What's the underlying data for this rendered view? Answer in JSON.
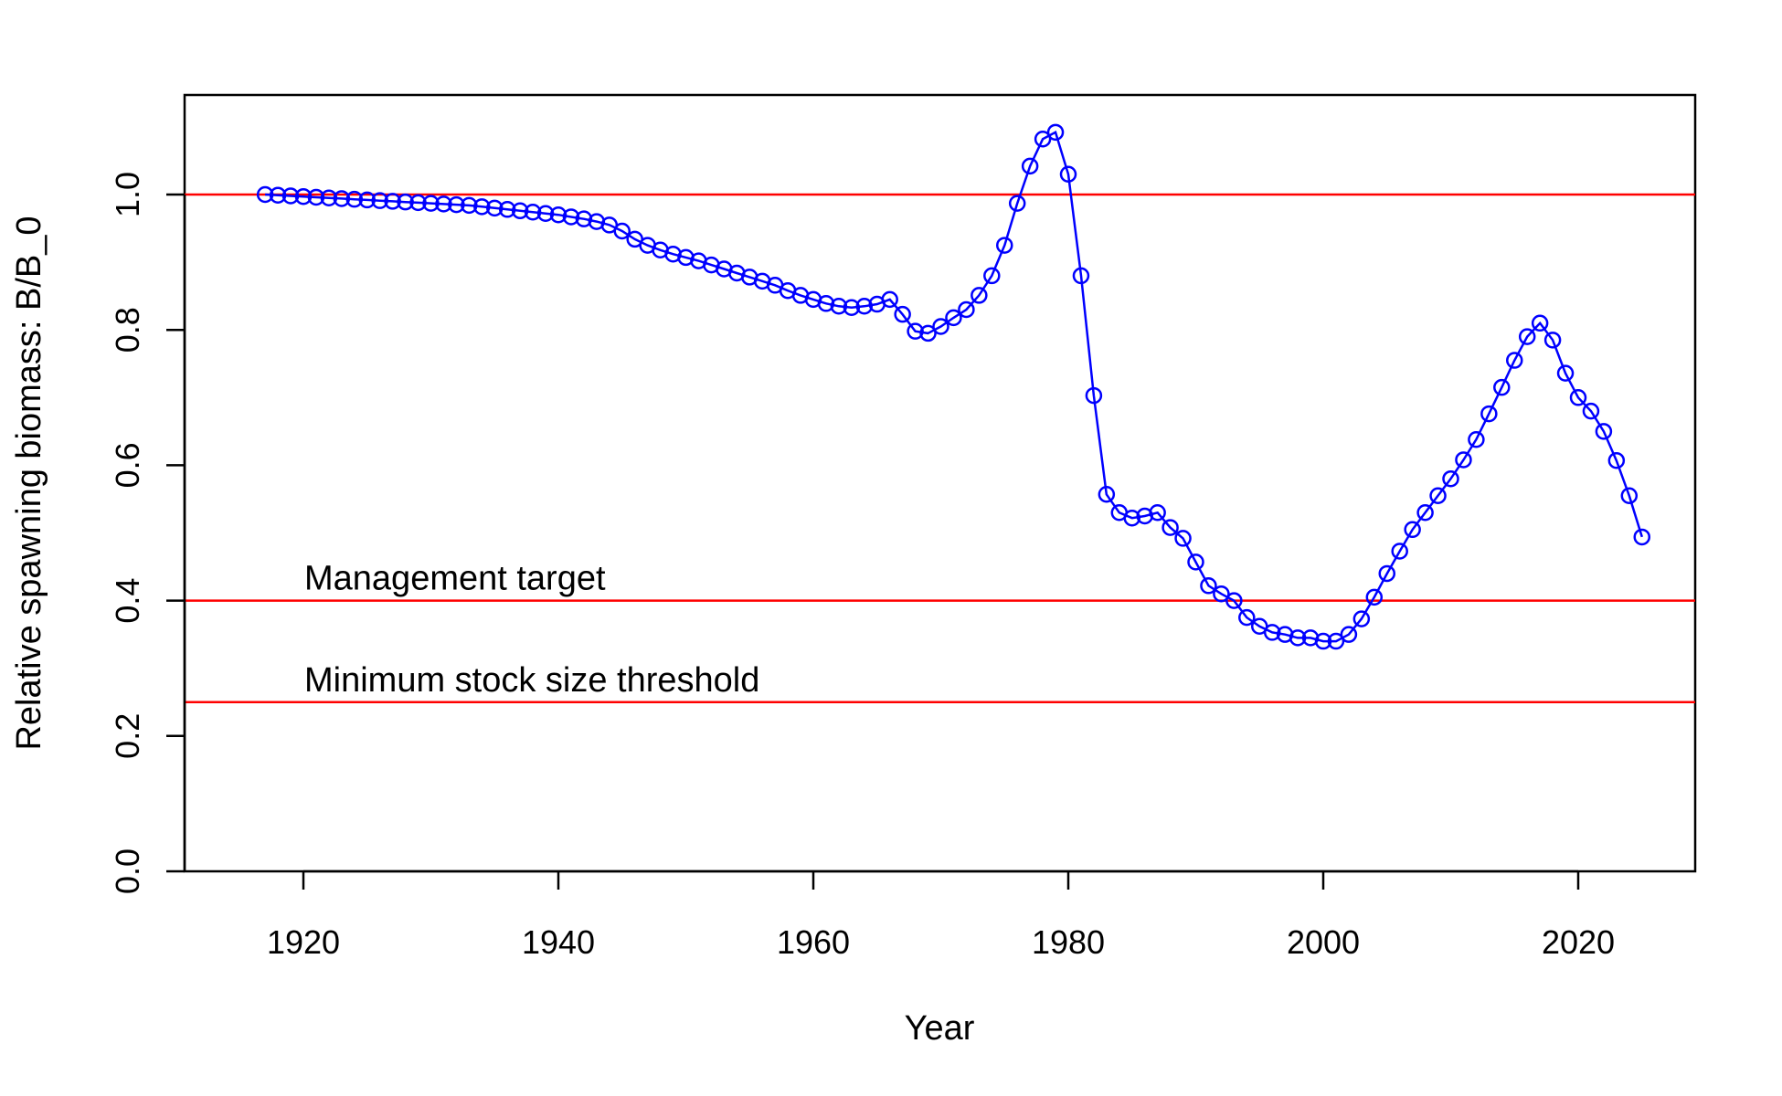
{
  "chart_data": {
    "type": "line",
    "title": "",
    "xlabel": "Year",
    "ylabel": "Relative spawning biomass: B/B_0",
    "xlim": [
      1910,
      2030
    ],
    "ylim": [
      0,
      1.15
    ],
    "xticks": [
      1920,
      1940,
      1960,
      1980,
      2000,
      2020
    ],
    "xtick_labels": [
      "1920",
      "1940",
      "1960",
      "1980",
      "2000",
      "2020"
    ],
    "yticks": [
      0,
      0.2,
      0.4,
      0.6,
      0.8,
      1.0
    ],
    "ytick_labels": [
      "0.0",
      "0.2",
      "0.4",
      "0.6",
      "0.8",
      "1.0"
    ],
    "grid": false,
    "series": [
      {
        "color": "#0000ff",
        "marker": "open-circle",
        "x": [
          1917,
          1918,
          1919,
          1920,
          1921,
          1922,
          1923,
          1924,
          1925,
          1926,
          1927,
          1928,
          1929,
          1930,
          1931,
          1932,
          1933,
          1934,
          1935,
          1936,
          1937,
          1938,
          1939,
          1940,
          1941,
          1942,
          1943,
          1944,
          1945,
          1946,
          1947,
          1948,
          1949,
          1950,
          1951,
          1952,
          1953,
          1954,
          1955,
          1956,
          1957,
          1958,
          1959,
          1960,
          1961,
          1962,
          1963,
          1964,
          1965,
          1966,
          1967,
          1968,
          1969,
          1970,
          1971,
          1972,
          1973,
          1974,
          1975,
          1976,
          1977,
          1978,
          1979,
          1980,
          1981,
          1982,
          1983,
          1984,
          1985,
          1986,
          1987,
          1988,
          1989,
          1990,
          1991,
          1992,
          1993,
          1994,
          1995,
          1996,
          1997,
          1998,
          1999,
          2000,
          2001,
          2002,
          2003,
          2004,
          2005,
          2006,
          2007,
          2008,
          2009,
          2010,
          2011,
          2012,
          2013,
          2014,
          2015,
          2016,
          2017,
          2018,
          2019,
          2020,
          2021,
          2022,
          2023,
          2024,
          2025
        ],
        "y": [
          1.0,
          0.999,
          0.998,
          0.997,
          0.996,
          0.995,
          0.994,
          0.993,
          0.992,
          0.991,
          0.99,
          0.989,
          0.988,
          0.987,
          0.986,
          0.985,
          0.984,
          0.982,
          0.98,
          0.978,
          0.976,
          0.974,
          0.972,
          0.97,
          0.967,
          0.964,
          0.96,
          0.955,
          0.946,
          0.934,
          0.925,
          0.918,
          0.912,
          0.907,
          0.902,
          0.896,
          0.89,
          0.884,
          0.878,
          0.872,
          0.866,
          0.858,
          0.851,
          0.845,
          0.839,
          0.835,
          0.833,
          0.835,
          0.838,
          0.845,
          0.823,
          0.798,
          0.795,
          0.805,
          0.818,
          0.83,
          0.851,
          0.88,
          0.925,
          0.987,
          1.042,
          1.082,
          1.092,
          1.03,
          0.88,
          0.703,
          0.557,
          0.53,
          0.522,
          0.525,
          0.53,
          0.508,
          0.492,
          0.457,
          0.422,
          0.41,
          0.4,
          0.375,
          0.362,
          0.353,
          0.35,
          0.345,
          0.345,
          0.34,
          0.34,
          0.35,
          0.373,
          0.405,
          0.44,
          0.473,
          0.505,
          0.53,
          0.555,
          0.58,
          0.608,
          0.638,
          0.676,
          0.715,
          0.755,
          0.79,
          0.81,
          0.785,
          0.736,
          0.7,
          0.68,
          0.65,
          0.607,
          0.555,
          0.494
        ]
      }
    ],
    "reference_lines": [
      {
        "y": 1.0,
        "color": "#ff0000",
        "label": ""
      },
      {
        "y": 0.4,
        "color": "#ff0000",
        "label": "Management target"
      },
      {
        "y": 0.25,
        "color": "#ff0000",
        "label": "Minimum stock size threshold"
      }
    ]
  }
}
